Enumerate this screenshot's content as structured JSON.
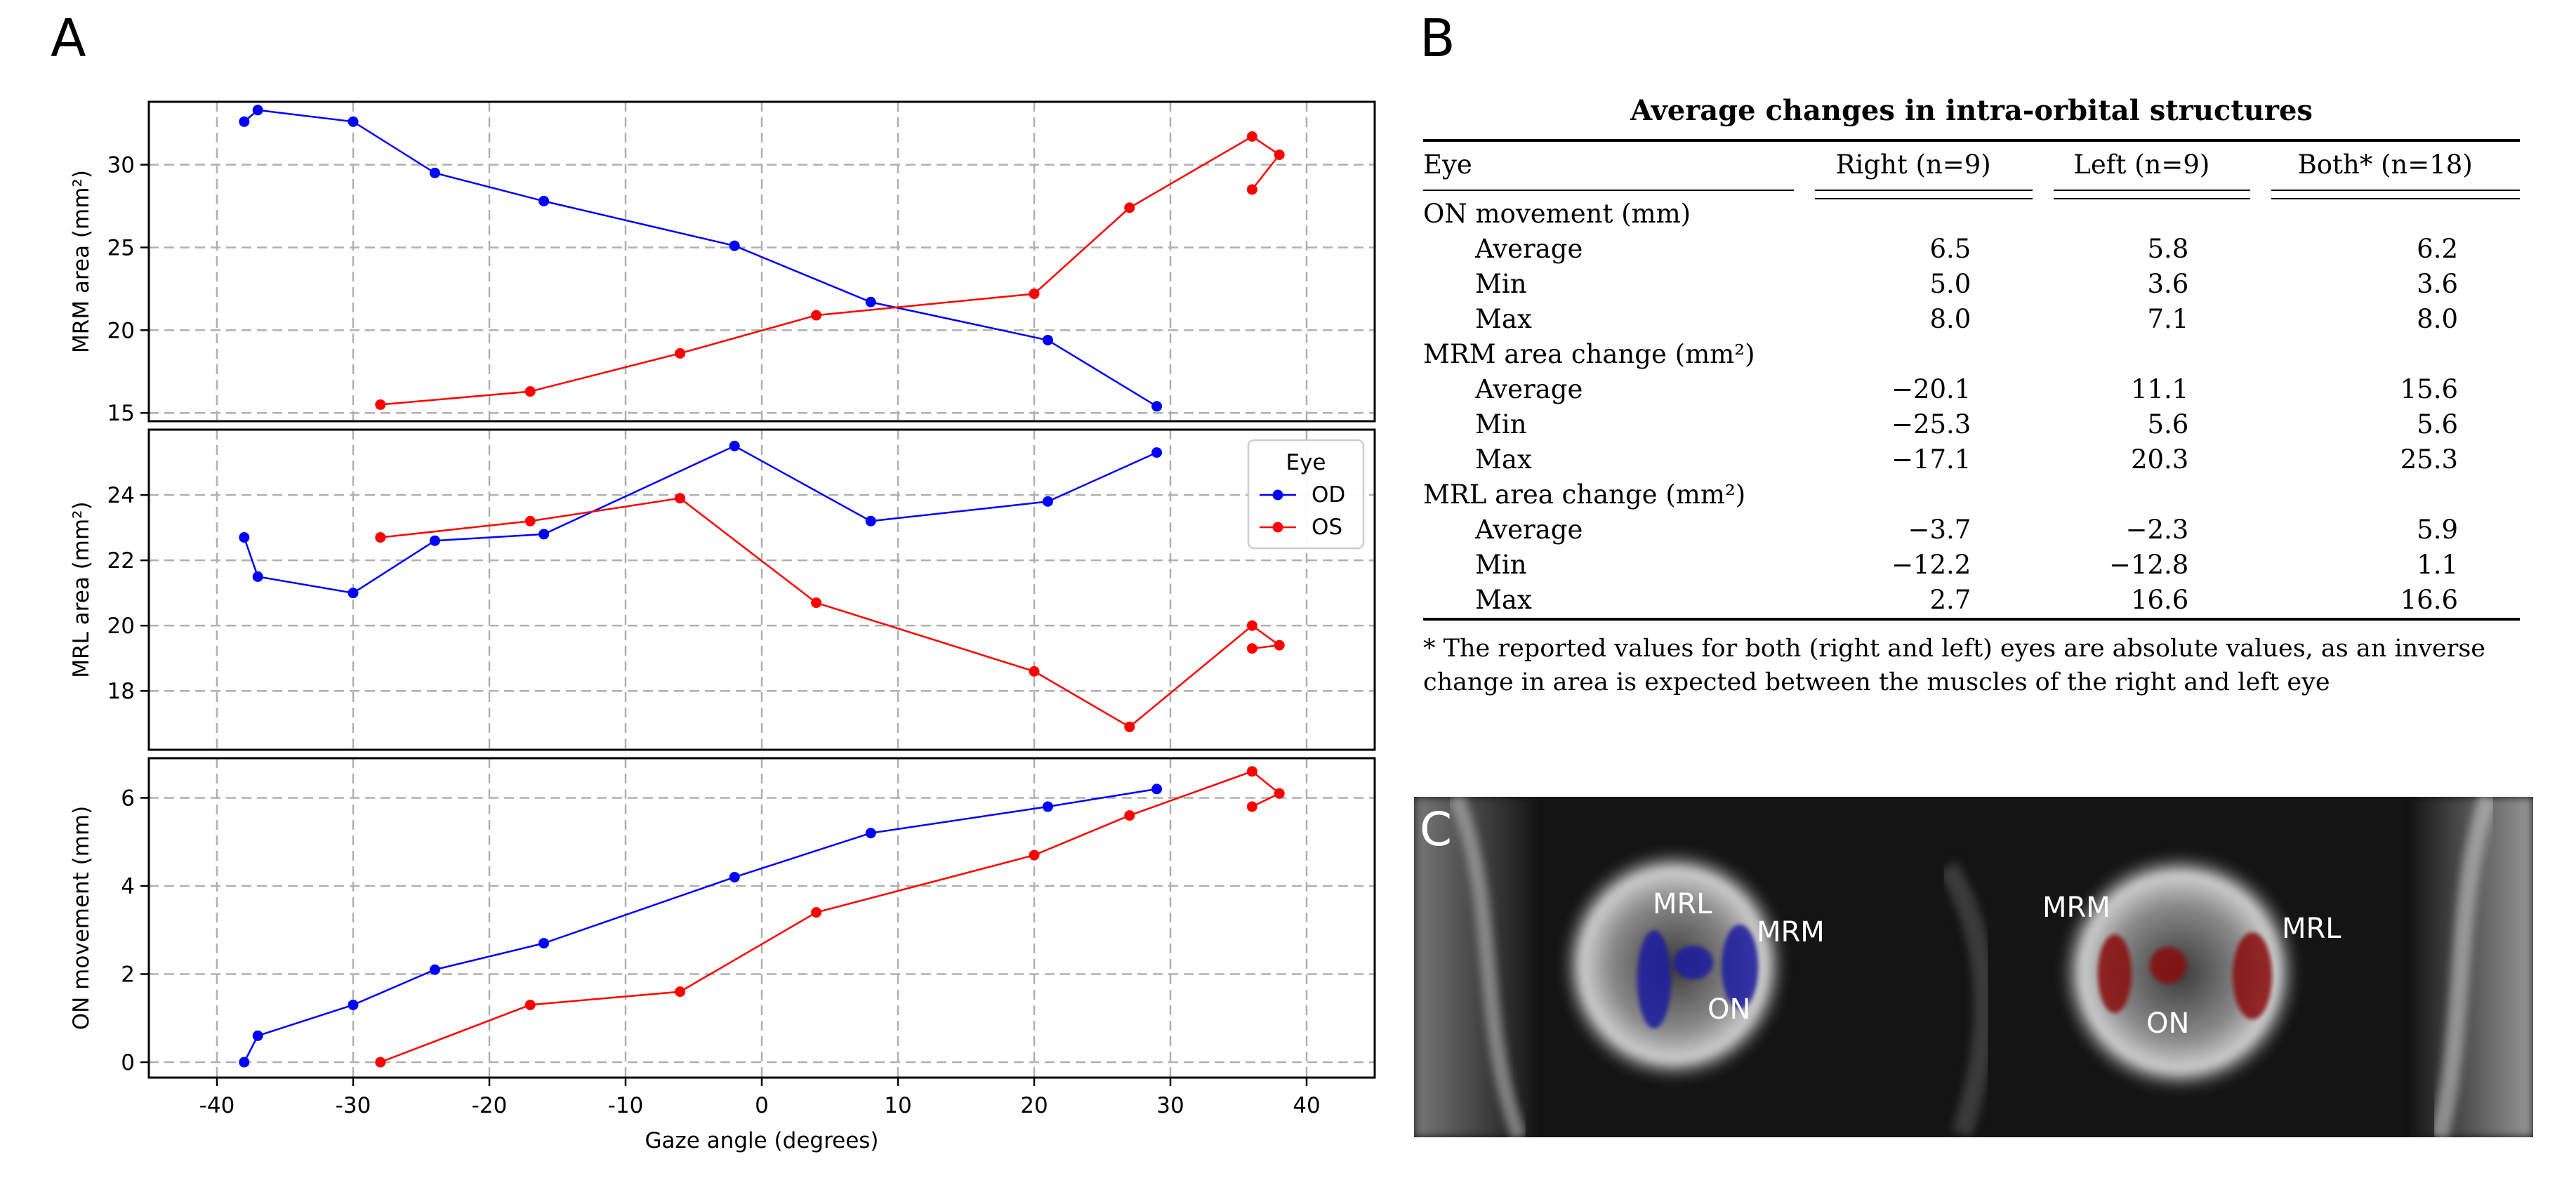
{
  "panel_labels": {
    "a": "A",
    "b": "B",
    "c": "C"
  },
  "colors": {
    "od": "#0000ff",
    "os": "#ff0000",
    "grid": "#b0b0b0"
  },
  "chart_data": [
    {
      "type": "line",
      "ylabel": "MRM area (mm²)",
      "xlim": [
        -45,
        45
      ],
      "ylim": [
        14.5,
        33.8
      ],
      "yticks": [
        15,
        20,
        25,
        30
      ],
      "grid": true,
      "series": [
        {
          "name": "OD",
          "x": [
            -38,
            -37,
            -30,
            -24,
            -16,
            -2,
            8,
            21,
            29
          ],
          "y": [
            32.6,
            33.3,
            32.6,
            29.5,
            27.8,
            25.1,
            21.7,
            19.4,
            15.4
          ]
        },
        {
          "name": "OS",
          "x": [
            -28,
            -17,
            -6,
            4,
            20,
            27,
            36,
            38,
            36
          ],
          "y": [
            15.5,
            16.3,
            18.6,
            20.9,
            22.2,
            27.4,
            31.7,
            30.6,
            28.5
          ]
        }
      ]
    },
    {
      "type": "line",
      "ylabel": "MRL area (mm²)",
      "xlim": [
        -45,
        45
      ],
      "ylim": [
        16.2,
        26.0
      ],
      "yticks": [
        18,
        20,
        22,
        24
      ],
      "grid": true,
      "series": [
        {
          "name": "OD",
          "x": [
            -38,
            -37,
            -30,
            -24,
            -16,
            -2,
            8,
            21,
            29
          ],
          "y": [
            22.7,
            21.5,
            21.0,
            22.6,
            22.8,
            25.5,
            23.2,
            23.8,
            25.3
          ]
        },
        {
          "name": "OS",
          "x": [
            -28,
            -17,
            -6,
            4,
            20,
            27,
            36,
            38,
            36
          ],
          "y": [
            22.7,
            23.2,
            23.9,
            20.7,
            18.6,
            16.9,
            20.0,
            19.4,
            19.3
          ]
        }
      ],
      "legend": {
        "title": "Eye",
        "entries": [
          "OD",
          "OS"
        ],
        "placement": "top-right"
      }
    },
    {
      "type": "line",
      "ylabel": "ON movement (mm)",
      "xlabel": "Gaze angle (degrees)",
      "xlim": [
        -45,
        45
      ],
      "ylim": [
        -0.35,
        6.9
      ],
      "xticks": [
        -40,
        -30,
        -20,
        -10,
        0,
        10,
        20,
        30,
        40
      ],
      "yticks": [
        0,
        2,
        4,
        6
      ],
      "grid": true,
      "series": [
        {
          "name": "OD",
          "x": [
            -38,
            -37,
            -30,
            -24,
            -16,
            -2,
            8,
            21,
            29
          ],
          "y": [
            0.0,
            0.6,
            1.3,
            2.1,
            2.7,
            4.2,
            5.2,
            5.8,
            6.2
          ]
        },
        {
          "name": "OS",
          "x": [
            -28,
            -17,
            -6,
            4,
            20,
            27,
            36,
            38,
            36
          ],
          "y": [
            0.0,
            1.3,
            1.6,
            3.4,
            4.7,
            5.6,
            6.6,
            6.1,
            5.8
          ]
        }
      ]
    }
  ],
  "table": {
    "title": "Average changes in intra-orbital structures",
    "headers": [
      "Eye",
      "Right (n=9)",
      "Left (n=9)",
      "Both* (n=18)"
    ],
    "groups": [
      {
        "label": "ON movement (mm)",
        "rows": [
          {
            "label": "Average",
            "values": [
              "6.5",
              "5.8",
              "6.2"
            ]
          },
          {
            "label": "Min",
            "values": [
              "5.0",
              "3.6",
              "3.6"
            ]
          },
          {
            "label": "Max",
            "values": [
              "8.0",
              "7.1",
              "8.0"
            ]
          }
        ]
      },
      {
        "label": "MRM area change (mm²)",
        "rows": [
          {
            "label": "Average",
            "values": [
              "−20.1",
              "11.1",
              "15.6"
            ]
          },
          {
            "label": "Min",
            "values": [
              "−25.3",
              "5.6",
              "5.6"
            ]
          },
          {
            "label": "Max",
            "values": [
              "−17.1",
              "20.3",
              "25.3"
            ]
          }
        ]
      },
      {
        "label": "MRL area change (mm²)",
        "rows": [
          {
            "label": "Average",
            "values": [
              "−3.7",
              "−2.3",
              "5.9"
            ]
          },
          {
            "label": "Min",
            "values": [
              "−12.2",
              "−12.8",
              "1.1"
            ]
          },
          {
            "label": "Max",
            "values": [
              "2.7",
              "16.6",
              "16.6"
            ]
          }
        ]
      }
    ],
    "footnote": "* The reported values for both (right and left) eyes are absolute values, as an inverse change in area is expected between the muscles of the right and left eye"
  },
  "mri": {
    "labels": {
      "mrl_left": "MRL",
      "mrm_left": "MRM",
      "on_left": "ON",
      "mrm_right": "MRM",
      "mrl_right": "MRL",
      "on_right": "ON"
    }
  }
}
